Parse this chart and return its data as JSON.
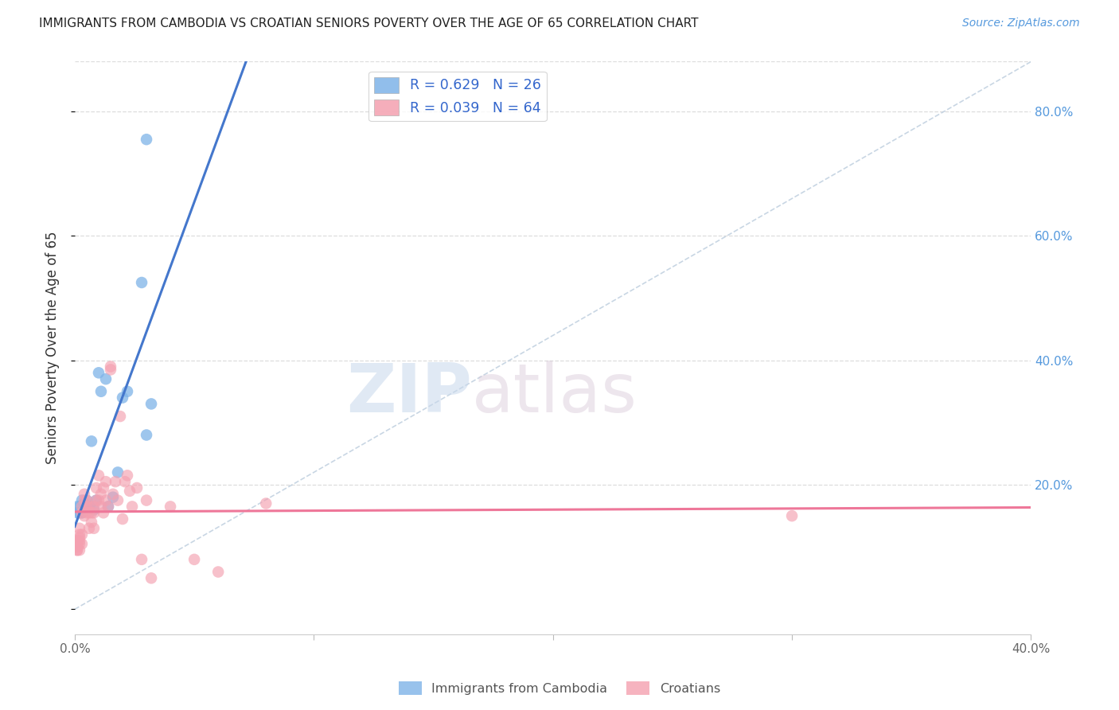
{
  "title": "IMMIGRANTS FROM CAMBODIA VS CROATIAN SENIORS POVERTY OVER THE AGE OF 65 CORRELATION CHART",
  "source": "Source: ZipAtlas.com",
  "ylabel": "Seniors Poverty Over the Age of 65",
  "xlim": [
    0.0,
    0.4
  ],
  "ylim": [
    -0.04,
    0.88
  ],
  "R_blue": 0.629,
  "N_blue": 26,
  "R_pink": 0.039,
  "N_pink": 64,
  "blue_color": "#7EB3E8",
  "pink_color": "#F4A0B0",
  "blue_line_color": "#4477CC",
  "pink_line_color": "#EE7799",
  "diagonal_color": "#BBCCDD",
  "legend_label_blue": "Immigrants from Cambodia",
  "legend_label_pink": "Croatians",
  "blue_x": [
    0.001,
    0.001,
    0.002,
    0.002,
    0.003,
    0.003,
    0.004,
    0.004,
    0.005,
    0.005,
    0.005,
    0.006,
    0.007,
    0.008,
    0.009,
    0.01,
    0.011,
    0.013,
    0.014,
    0.016,
    0.018,
    0.02,
    0.022,
    0.028,
    0.03,
    0.032
  ],
  "blue_y": [
    0.155,
    0.165,
    0.155,
    0.165,
    0.155,
    0.175,
    0.16,
    0.17,
    0.16,
    0.165,
    0.175,
    0.165,
    0.27,
    0.16,
    0.175,
    0.38,
    0.35,
    0.37,
    0.165,
    0.18,
    0.22,
    0.34,
    0.35,
    0.525,
    0.28,
    0.33
  ],
  "blue_outlier_x": [
    0.03
  ],
  "blue_outlier_y": [
    0.755
  ],
  "pink_x": [
    0.001,
    0.001,
    0.001,
    0.001,
    0.001,
    0.001,
    0.001,
    0.001,
    0.001,
    0.002,
    0.002,
    0.002,
    0.002,
    0.002,
    0.002,
    0.003,
    0.003,
    0.003,
    0.003,
    0.004,
    0.004,
    0.004,
    0.005,
    0.005,
    0.005,
    0.006,
    0.006,
    0.006,
    0.007,
    0.007,
    0.008,
    0.008,
    0.008,
    0.009,
    0.009,
    0.01,
    0.01,
    0.011,
    0.011,
    0.012,
    0.012,
    0.013,
    0.013,
    0.014,
    0.015,
    0.015,
    0.016,
    0.017,
    0.018,
    0.019,
    0.02,
    0.021,
    0.022,
    0.023,
    0.024,
    0.026,
    0.028,
    0.03,
    0.032,
    0.04,
    0.05,
    0.06,
    0.08,
    0.3
  ],
  "pink_y": [
    0.105,
    0.11,
    0.1,
    0.095,
    0.105,
    0.11,
    0.1,
    0.095,
    0.105,
    0.12,
    0.13,
    0.115,
    0.105,
    0.11,
    0.095,
    0.155,
    0.165,
    0.12,
    0.105,
    0.185,
    0.175,
    0.15,
    0.165,
    0.155,
    0.175,
    0.13,
    0.165,
    0.155,
    0.155,
    0.14,
    0.165,
    0.13,
    0.155,
    0.175,
    0.195,
    0.175,
    0.215,
    0.185,
    0.165,
    0.195,
    0.155,
    0.205,
    0.175,
    0.165,
    0.385,
    0.39,
    0.185,
    0.205,
    0.175,
    0.31,
    0.145,
    0.205,
    0.215,
    0.19,
    0.165,
    0.195,
    0.08,
    0.175,
    0.05,
    0.165,
    0.08,
    0.06,
    0.17,
    0.15
  ],
  "watermark_zip": "ZIP",
  "watermark_atlas": "atlas",
  "background_color": "#FFFFFF",
  "grid_color": "#DDDDDD"
}
